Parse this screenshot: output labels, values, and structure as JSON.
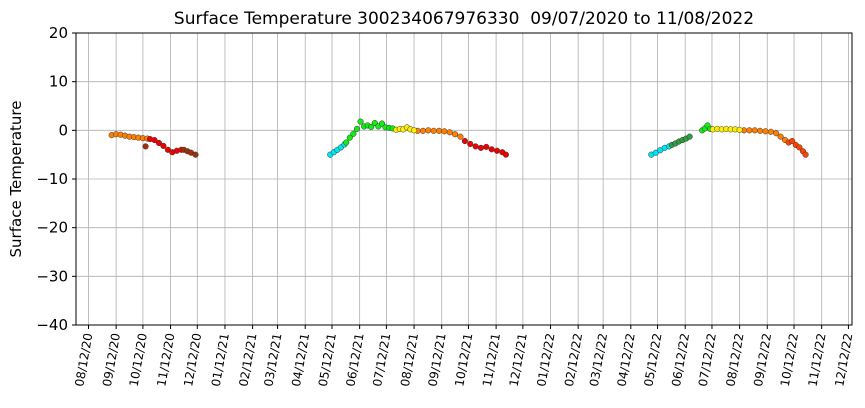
{
  "chart_data": {
    "type": "scatter",
    "title": "Surface Temperature 300234067976330  09/07/2020 to 11/08/2022",
    "y_label": "Surface Temperature",
    "grid": true,
    "xlim": [
      "2020-07-29",
      "2022-12-16"
    ],
    "ylim": [
      -40,
      20
    ],
    "yticks": [
      {
        "value": -40,
        "label": "−40"
      },
      {
        "value": -30,
        "label": "−30"
      },
      {
        "value": -20,
        "label": "−20"
      },
      {
        "value": -10,
        "label": "−10"
      },
      0,
      10,
      20
    ],
    "xticks": [
      {
        "value": "2020-08-12",
        "label": "08/12/20"
      },
      {
        "value": "2020-09-12",
        "label": "09/12/20"
      },
      {
        "value": "2020-10-12",
        "label": "10/12/20"
      },
      {
        "value": "2020-11-12",
        "label": "11/12/20"
      },
      {
        "value": "2020-12-12",
        "label": "12/12/20"
      },
      {
        "value": "2021-01-12",
        "label": "01/12/21"
      },
      {
        "value": "2021-02-12",
        "label": "02/12/21"
      },
      {
        "value": "2021-03-12",
        "label": "03/12/21"
      },
      {
        "value": "2021-04-12",
        "label": "04/12/21"
      },
      {
        "value": "2021-05-12",
        "label": "05/12/21"
      },
      {
        "value": "2021-06-12",
        "label": "06/12/21"
      },
      {
        "value": "2021-07-12",
        "label": "07/12/21"
      },
      {
        "value": "2021-08-12",
        "label": "08/12/21"
      },
      {
        "value": "2021-09-12",
        "label": "09/12/21"
      },
      {
        "value": "2021-10-12",
        "label": "10/12/21"
      },
      {
        "value": "2021-11-12",
        "label": "11/12/21"
      },
      {
        "value": "2021-12-12",
        "label": "12/12/21"
      },
      {
        "value": "2022-01-12",
        "label": "01/12/22"
      },
      {
        "value": "2022-02-12",
        "label": "02/12/22"
      },
      {
        "value": "2022-03-12",
        "label": "03/12/22"
      },
      {
        "value": "2022-04-12",
        "label": "04/12/22"
      },
      {
        "value": "2022-05-12",
        "label": "05/12/22"
      },
      {
        "value": "2022-06-12",
        "label": "06/12/22"
      },
      {
        "value": "2022-07-12",
        "label": "07/12/22"
      },
      {
        "value": "2022-08-12",
        "label": "08/12/22"
      },
      {
        "value": "2022-09-12",
        "label": "09/12/22"
      },
      {
        "value": "2022-10-12",
        "label": "10/12/22"
      },
      {
        "value": "2022-11-12",
        "label": "11/12/22"
      },
      {
        "value": "2022-12-12",
        "label": "12/12/22"
      }
    ],
    "series": [
      {
        "color": "#ff8000",
        "x": [
          "2020-09-07",
          "2020-09-12",
          "2020-09-17",
          "2020-09-22",
          "2020-09-27",
          "2020-10-02",
          "2020-10-07",
          "2020-10-12",
          "2020-10-17",
          "2021-08-16",
          "2021-08-22",
          "2021-08-28",
          "2021-09-03",
          "2021-09-09",
          "2021-09-15",
          "2021-09-21",
          "2021-09-27",
          "2021-10-03",
          "2022-08-17",
          "2022-08-23",
          "2022-08-29",
          "2022-09-04",
          "2022-09-10",
          "2022-09-16",
          "2022-09-22",
          "2022-09-27",
          "2022-10-02"
        ],
        "values": [
          -1.0,
          -0.8,
          -0.9,
          -1.1,
          -1.3,
          -1.4,
          -1.5,
          -1.6,
          -1.7,
          -0.1,
          -0.1,
          0,
          -0.1,
          -0.1,
          -0.2,
          -0.4,
          -0.8,
          -1.3,
          0,
          0,
          0,
          -0.1,
          -0.2,
          -0.3,
          -0.6,
          -1.3,
          -2.0
        ]
      },
      {
        "color": "#ee0000",
        "x": [
          "2020-10-20",
          "2020-10-25",
          "2020-10-30",
          "2020-11-04",
          "2020-11-09",
          "2020-11-14",
          "2020-11-19",
          "2020-11-24",
          "2021-10-08",
          "2021-10-14",
          "2021-10-20",
          "2021-10-26",
          "2021-11-01",
          "2021-11-07",
          "2021-11-13",
          "2021-11-19",
          "2021-11-23"
        ],
        "values": [
          -1.8,
          -2.0,
          -2.6,
          -3.2,
          -4.0,
          -4.5,
          -4.2,
          -4.0,
          -2.2,
          -2.8,
          -3.3,
          -3.6,
          -3.4,
          -3.9,
          -4.2,
          -4.5,
          -5.0
        ]
      },
      {
        "color": "#a0300a",
        "x": [
          "2020-10-15",
          "2020-11-27",
          "2020-12-01",
          "2020-12-05",
          "2020-12-10"
        ],
        "values": [
          -3.3,
          -4.0,
          -4.3,
          -4.6,
          -5.0
        ]
      },
      {
        "color": "#00e5ee",
        "x": [
          "2021-05-10",
          "2021-05-14",
          "2021-05-18",
          "2021-05-22",
          "2021-05-26",
          "2022-05-05",
          "2022-05-10",
          "2022-05-15",
          "2022-05-20",
          "2022-05-25"
        ],
        "values": [
          -5.0,
          -4.5,
          -4.0,
          -3.5,
          -2.9,
          -5.0,
          -4.6,
          -4.1,
          -3.6,
          -3.3
        ]
      },
      {
        "color": "#11ee11",
        "x": [
          "2021-05-28",
          "2021-06-01",
          "2021-06-05",
          "2021-06-09",
          "2021-06-13",
          "2021-06-17",
          "2021-06-21",
          "2021-06-25",
          "2021-06-29",
          "2021-07-03",
          "2021-07-07",
          "2021-07-11",
          "2021-07-15",
          "2021-07-19",
          "2022-07-01",
          "2022-07-04",
          "2022-07-07",
          "2022-07-10"
        ],
        "values": [
          -2.5,
          -1.5,
          -0.7,
          0.3,
          1.8,
          0.8,
          1.0,
          0.7,
          1.5,
          0.8,
          1.4,
          0.6,
          0.5,
          0.4,
          0,
          0.4,
          1.0,
          0.3
        ]
      },
      {
        "color": "#2e9e40",
        "x": [
          "2022-05-28",
          "2022-06-01",
          "2022-06-05",
          "2022-06-09",
          "2022-06-13",
          "2022-06-17"
        ],
        "values": [
          -3.0,
          -2.7,
          -2.3,
          -2.0,
          -1.7,
          -1.3
        ]
      },
      {
        "color": "#ffee00",
        "x": [
          "2021-07-23",
          "2021-07-27",
          "2021-07-31",
          "2021-08-04",
          "2021-08-08",
          "2021-08-12",
          "2022-07-13",
          "2022-07-18",
          "2022-07-23",
          "2022-07-28",
          "2022-08-02",
          "2022-08-07",
          "2022-08-12"
        ],
        "values": [
          0.1,
          0.3,
          0.2,
          0.6,
          0.2,
          0,
          0.2,
          0.3,
          0.2,
          0.3,
          0.2,
          0.2,
          0.1
        ]
      },
      {
        "color": "#ff4400",
        "x": [
          "2022-10-06",
          "2022-10-10",
          "2022-10-14",
          "2022-10-18",
          "2022-10-22",
          "2022-10-25"
        ],
        "values": [
          -2.5,
          -2.2,
          -3.0,
          -3.5,
          -4.3,
          -5.0
        ]
      }
    ]
  }
}
